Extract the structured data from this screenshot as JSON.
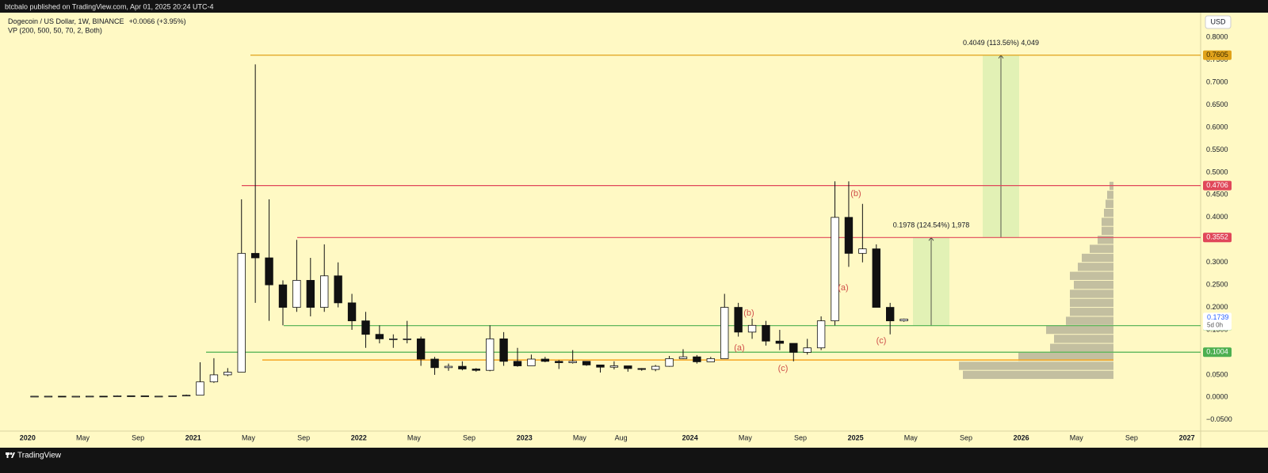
{
  "header": {
    "published": "btcbalo published on TradingView.com, Apr 01, 2025 20:24 UTC-4",
    "symbol": "Dogecoin / US Dollar, 1W, BINANCE",
    "change": "+0.0066 (+3.95%)",
    "indicator": "VP (200, 500, 50, 70, 2, Both)",
    "currency": "USD",
    "brand": "TradingView"
  },
  "chart_data": {
    "type": "candlestick",
    "x": [
      "2020-01",
      "2020-02",
      "2020-03",
      "2020-04",
      "2020-05",
      "2020-06",
      "2020-07",
      "2020-08",
      "2020-09",
      "2020-10",
      "2020-11",
      "2020-12",
      "2021-01",
      "2021-02",
      "2021-03",
      "2021-04",
      "2021-05",
      "2021-06",
      "2021-07",
      "2021-08",
      "2021-09",
      "2021-10",
      "2021-11",
      "2021-12",
      "2022-01",
      "2022-02",
      "2022-03",
      "2022-04",
      "2022-05",
      "2022-06",
      "2022-07",
      "2022-08",
      "2022-09",
      "2022-10",
      "2022-11",
      "2022-12",
      "2023-01",
      "2023-02",
      "2023-03",
      "2023-04",
      "2023-05",
      "2023-06",
      "2023-07",
      "2023-08",
      "2023-09",
      "2023-10",
      "2023-11",
      "2023-12",
      "2024-01",
      "2024-02",
      "2024-03",
      "2024-04",
      "2024-05",
      "2024-06",
      "2024-07",
      "2024-08",
      "2024-09",
      "2024-10",
      "2024-11",
      "2024-12",
      "2025-01",
      "2025-02",
      "2025-03",
      "2025-04"
    ],
    "open": [
      0.002,
      0.0025,
      0.0025,
      0.0018,
      0.0024,
      0.0026,
      0.0024,
      0.0034,
      0.0033,
      0.0026,
      0.0026,
      0.0033,
      0.0047,
      0.0344,
      0.05,
      0.056,
      0.32,
      0.31,
      0.25,
      0.2,
      0.26,
      0.2,
      0.27,
      0.21,
      0.17,
      0.14,
      0.13,
      0.13,
      0.13,
      0.085,
      0.066,
      0.069,
      0.063,
      0.06,
      0.13,
      0.08,
      0.07,
      0.085,
      0.08,
      0.077,
      0.08,
      0.072,
      0.067,
      0.07,
      0.064,
      0.062,
      0.069,
      0.086,
      0.09,
      0.079,
      0.086,
      0.2,
      0.145,
      0.16,
      0.125,
      0.12,
      0.1,
      0.11,
      0.17,
      0.4,
      0.32,
      0.33,
      0.2,
      0.17
    ],
    "high": [
      0.0031,
      0.0032,
      0.0026,
      0.0025,
      0.0028,
      0.0028,
      0.0045,
      0.004,
      0.0034,
      0.0028,
      0.0037,
      0.0061,
      0.078,
      0.087,
      0.065,
      0.44,
      0.74,
      0.44,
      0.26,
      0.35,
      0.31,
      0.34,
      0.3,
      0.23,
      0.19,
      0.16,
      0.14,
      0.17,
      0.135,
      0.09,
      0.075,
      0.08,
      0.065,
      0.16,
      0.145,
      0.11,
      0.095,
      0.09,
      0.083,
      0.105,
      0.08,
      0.072,
      0.08,
      0.07,
      0.065,
      0.072,
      0.092,
      0.107,
      0.094,
      0.09,
      0.23,
      0.21,
      0.175,
      0.17,
      0.15,
      0.12,
      0.13,
      0.18,
      0.48,
      0.48,
      0.43,
      0.34,
      0.21,
      0.175
    ],
    "low": [
      0.002,
      0.0024,
      0.0013,
      0.0018,
      0.0023,
      0.0024,
      0.0022,
      0.0031,
      0.0025,
      0.0024,
      0.0026,
      0.0028,
      0.0047,
      0.032,
      0.047,
      0.056,
      0.21,
      0.17,
      0.16,
      0.19,
      0.18,
      0.19,
      0.2,
      0.15,
      0.11,
      0.12,
      0.11,
      0.12,
      0.07,
      0.05,
      0.059,
      0.06,
      0.057,
      0.058,
      0.07,
      0.068,
      0.07,
      0.078,
      0.063,
      0.075,
      0.07,
      0.055,
      0.062,
      0.057,
      0.059,
      0.058,
      0.068,
      0.085,
      0.075,
      0.079,
      0.086,
      0.135,
      0.13,
      0.115,
      0.105,
      0.08,
      0.095,
      0.105,
      0.16,
      0.29,
      0.3,
      0.2,
      0.14,
      0.168
    ],
    "close": [
      0.0025,
      0.0025,
      0.0018,
      0.0024,
      0.0026,
      0.0024,
      0.0034,
      0.0033,
      0.0026,
      0.0026,
      0.0033,
      0.0047,
      0.0344,
      0.05,
      0.056,
      0.32,
      0.31,
      0.25,
      0.2,
      0.26,
      0.2,
      0.27,
      0.21,
      0.17,
      0.14,
      0.13,
      0.13,
      0.13,
      0.085,
      0.066,
      0.069,
      0.063,
      0.06,
      0.13,
      0.08,
      0.07,
      0.085,
      0.08,
      0.077,
      0.08,
      0.072,
      0.067,
      0.07,
      0.064,
      0.062,
      0.069,
      0.086,
      0.09,
      0.079,
      0.086,
      0.2,
      0.145,
      0.16,
      0.125,
      0.12,
      0.1,
      0.11,
      0.17,
      0.4,
      0.32,
      0.33,
      0.2,
      0.17,
      0.1739
    ],
    "up_color": "#ffffff",
    "down_color": "#111111",
    "xlim": [
      "2019-11",
      "2027-02"
    ],
    "xticks": [
      {
        "value": "2020-01",
        "label": "2020"
      },
      {
        "value": "2020-05",
        "label": "May"
      },
      {
        "value": "2020-09",
        "label": "Sep"
      },
      {
        "value": "2021-01",
        "label": "2021"
      },
      {
        "value": "2021-05",
        "label": "May"
      },
      {
        "value": "2021-09",
        "label": "Sep"
      },
      {
        "value": "2022-01",
        "label": "2022"
      },
      {
        "value": "2022-05",
        "label": "May"
      },
      {
        "value": "2022-09",
        "label": "Sep"
      },
      {
        "value": "2023-01",
        "label": "2023"
      },
      {
        "value": "2023-05",
        "label": "May"
      },
      {
        "value": "2023-08",
        "label": "Aug"
      },
      {
        "value": "2024-01",
        "label": "2024"
      },
      {
        "value": "2024-05",
        "label": "May"
      },
      {
        "value": "2024-09",
        "label": "Sep"
      },
      {
        "value": "2025-01",
        "label": "2025"
      },
      {
        "value": "2025-05",
        "label": "May"
      },
      {
        "value": "2025-09",
        "label": "Sep"
      },
      {
        "value": "2026-01",
        "label": "2026"
      },
      {
        "value": "2026-05",
        "label": "May"
      },
      {
        "value": "2026-09",
        "label": "Sep"
      },
      {
        "value": "2027-01",
        "label": "2027"
      }
    ],
    "ylim": [
      -0.075,
      0.855
    ],
    "yticks": [
      {
        "value": 0.8,
        "label": "0.8000"
      },
      {
        "value": 0.75,
        "label": "0.7500"
      },
      {
        "value": 0.7,
        "label": "0.7000"
      },
      {
        "value": 0.65,
        "label": "0.6500"
      },
      {
        "value": 0.6,
        "label": "0.6000"
      },
      {
        "value": 0.55,
        "label": "0.5500"
      },
      {
        "value": 0.5,
        "label": "0.5000"
      },
      {
        "value": 0.45,
        "label": "0.4500"
      },
      {
        "value": 0.4,
        "label": "0.4000"
      },
      {
        "value": 0.35,
        "label": "0.3500"
      },
      {
        "value": 0.3,
        "label": "0.3000"
      },
      {
        "value": 0.25,
        "label": "0.2500"
      },
      {
        "value": 0.2,
        "label": "0.2000"
      },
      {
        "value": 0.15,
        "label": "0.1500"
      },
      {
        "value": 0.1,
        "label": "0.1000"
      },
      {
        "value": 0.05,
        "label": "0.0500"
      },
      {
        "value": 0,
        "label": "0.0000"
      },
      {
        "value": -0.05,
        "label": "−0.0500"
      }
    ],
    "grid": false,
    "levels": [
      {
        "value": 0.7605,
        "color": "#e0a21a",
        "label_color": "#3a2a00"
      },
      {
        "value": 0.4706,
        "color": "#e0475a",
        "label_color": "#ffffff"
      },
      {
        "value": 0.3552,
        "color": "#e0475a",
        "label_color": "#ffffff"
      },
      {
        "value": 0.1594,
        "color": "#4caf50",
        "label_color": "#ffffff"
      },
      {
        "value": 0.1004,
        "color": "#4caf50",
        "label_color": "#ffffff"
      }
    ],
    "support_line": {
      "value": 0.083,
      "color": "#f5a623"
    },
    "last_price": {
      "value": 0.1739,
      "countdown": "5d 0h"
    },
    "measures": [
      "0.1978 (124.54%) 1,978",
      "0.4049 (113.56%) 4,049"
    ],
    "annotations": [
      "(b)",
      "(a)",
      "(b)",
      "(a)",
      "(c)",
      "(c)"
    ],
    "volume_profile": {
      "bins": [
        0.04,
        0.06,
        0.08,
        0.1,
        0.12,
        0.14,
        0.16,
        0.18,
        0.2,
        0.22,
        0.24,
        0.26,
        0.28,
        0.3,
        0.32,
        0.34,
        0.36,
        0.38,
        0.4,
        0.42,
        0.44,
        0.46,
        0.48
      ],
      "values": [
        190,
        195,
        120,
        80,
        75,
        85,
        60,
        55,
        55,
        55,
        50,
        55,
        45,
        40,
        30,
        20,
        15,
        15,
        12,
        10,
        8,
        5
      ],
      "color": "#b9b59a"
    }
  }
}
